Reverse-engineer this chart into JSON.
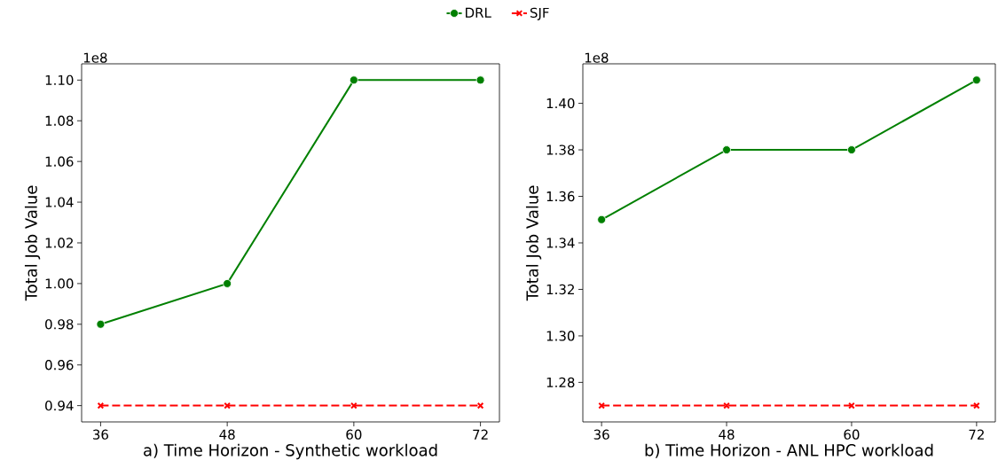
{
  "chart_data": [
    {
      "type": "line",
      "xlabel": "a) Time Horizon - Synthetic workload",
      "ylabel": "Total Job Value",
      "annotations": [
        "1e8"
      ],
      "x": [
        36,
        48,
        60,
        72
      ],
      "xlim": [
        34.2,
        73.8
      ],
      "xticks": [
        36,
        48,
        60,
        72
      ],
      "ylim": [
        0.932,
        1.108
      ],
      "yticks": [
        {
          "value": 0.94,
          "label": "0.94"
        },
        {
          "value": 0.96,
          "label": "0.96"
        },
        {
          "value": 0.98,
          "label": "0.98"
        },
        {
          "value": 1.0,
          "label": "1.00"
        },
        {
          "value": 1.02,
          "label": "1.02"
        },
        {
          "value": 1.04,
          "label": "1.04"
        },
        {
          "value": 1.06,
          "label": "1.06"
        },
        {
          "value": 1.08,
          "label": "1.08"
        },
        {
          "value": 1.1,
          "label": "1.10"
        }
      ],
      "legend": "top",
      "grid": false,
      "series": [
        {
          "name": "DRL",
          "color": "#008000",
          "values": [
            0.98,
            1.0,
            1.1,
            1.1
          ],
          "marker": "circle",
          "line_style": "solid"
        },
        {
          "name": "SJF",
          "color": "#ff0000",
          "values": [
            0.94,
            0.94,
            0.94,
            0.94
          ],
          "marker": "cross",
          "line_style": "dashed"
        }
      ]
    },
    {
      "type": "line",
      "xlabel": "b) Time Horizon - ANL HPC workload",
      "ylabel": "Total Job Value",
      "annotations": [
        "1e8"
      ],
      "x": [
        36,
        48,
        60,
        72
      ],
      "xlim": [
        34.2,
        73.8
      ],
      "xticks": [
        36,
        48,
        60,
        72
      ],
      "ylim": [
        1.263,
        1.417
      ],
      "yticks": [
        {
          "value": 1.28,
          "label": "1.28"
        },
        {
          "value": 1.3,
          "label": "1.30"
        },
        {
          "value": 1.32,
          "label": "1.32"
        },
        {
          "value": 1.34,
          "label": "1.34"
        },
        {
          "value": 1.36,
          "label": "1.36"
        },
        {
          "value": 1.38,
          "label": "1.38"
        },
        {
          "value": 1.4,
          "label": "1.40"
        }
      ],
      "grid": false,
      "series": [
        {
          "color": "#008000",
          "values": [
            1.35,
            1.38,
            1.38,
            1.41
          ],
          "marker": "circle",
          "line_style": "solid"
        },
        {
          "color": "#ff0000",
          "values": [
            1.27,
            1.27,
            1.27,
            1.27
          ],
          "marker": "cross",
          "line_style": "dashed"
        }
      ]
    }
  ]
}
